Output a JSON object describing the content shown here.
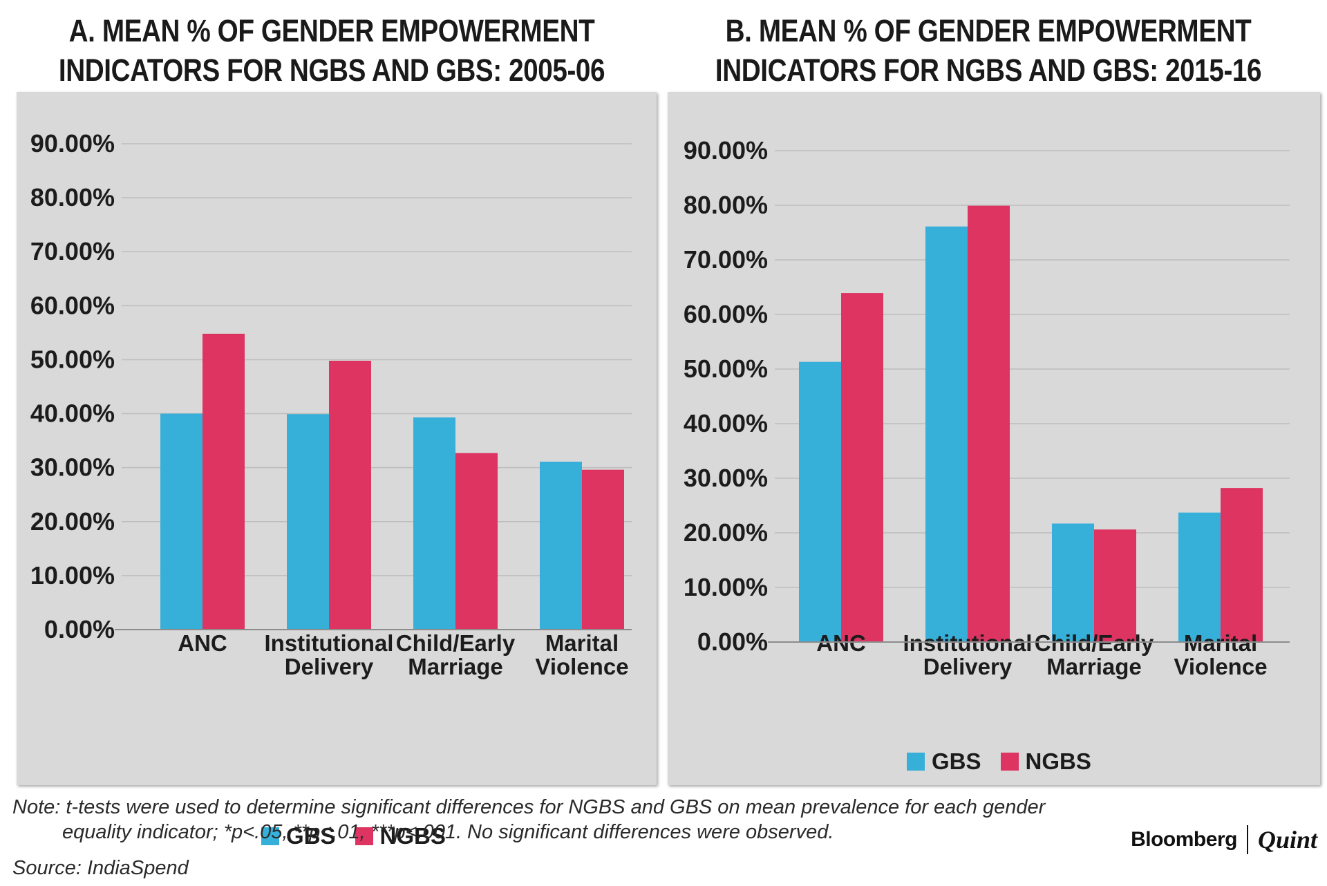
{
  "chart_data": [
    {
      "type": "bar",
      "title": [
        "A. MEAN % OF GENDER EMPOWERMENT",
        "INDICATORS FOR NGBS AND GBS: 2005-06"
      ],
      "categories": [
        [
          "ANC"
        ],
        [
          "Institutional",
          "Delivery"
        ],
        [
          "Child/Early",
          "Marriage"
        ],
        [
          "Marital",
          "Violence"
        ]
      ],
      "series": [
        {
          "name": "GBS",
          "color": "#36afd9",
          "values": [
            40.0,
            39.9,
            39.3,
            31.1
          ]
        },
        {
          "name": "NGBS",
          "color": "#de3462",
          "values": [
            54.8,
            49.8,
            32.7,
            29.6
          ]
        }
      ],
      "yticks": [
        "0.00%",
        "10.00%",
        "20.00%",
        "30.00%",
        "40.00%",
        "50.00%",
        "60.00%",
        "70.00%",
        "80.00%",
        "90.00%"
      ],
      "ylim": [
        0,
        90
      ],
      "xlabel": "",
      "ylabel": "",
      "grid": true,
      "legend_position": "bottom"
    },
    {
      "type": "bar",
      "title": [
        "B. MEAN % OF GENDER EMPOWERMENT",
        "INDICATORS FOR NGBS AND GBS: 2015-16"
      ],
      "categories": [
        [
          "ANC"
        ],
        [
          "Institutional",
          "Delivery"
        ],
        [
          "Child/Early",
          "Marriage"
        ],
        [
          "Marital",
          "Violence"
        ]
      ],
      "series": [
        {
          "name": "GBS",
          "color": "#36afd9",
          "values": [
            51.3,
            76.1,
            21.7,
            23.7
          ]
        },
        {
          "name": "NGBS",
          "color": "#de3462",
          "values": [
            63.9,
            79.9,
            20.6,
            28.2
          ]
        }
      ],
      "yticks": [
        "0.00%",
        "10.00%",
        "20.00%",
        "30.00%",
        "40.00%",
        "50.00%",
        "60.00%",
        "70.00%",
        "80.00%",
        "90.00%"
      ],
      "ylim": [
        0,
        90
      ],
      "xlabel": "",
      "ylabel": "",
      "grid": true,
      "legend_position": "bottom"
    }
  ],
  "footer": {
    "note_line1": "Note: t-tests were used to determine significant differences for NGBS and GBS on mean prevalence for each gender",
    "note_line2": "equality indicator; *p<.05, **p<.01, ***p<.001. No significant differences were observed.",
    "source": "Source: IndiaSpend",
    "logo_primary": "Bloomberg",
    "logo_secondary": "Quint"
  }
}
